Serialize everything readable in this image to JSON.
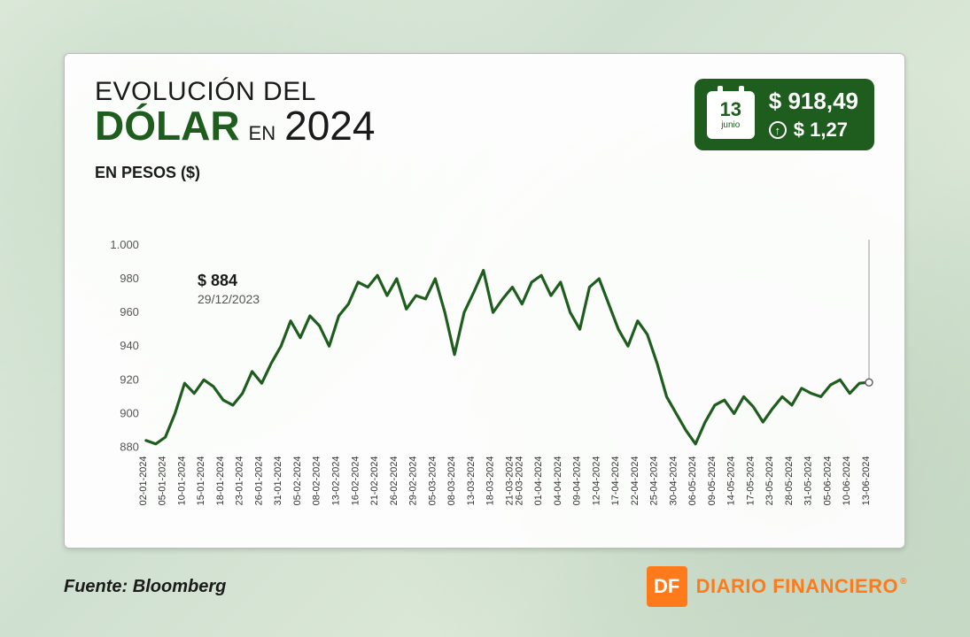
{
  "title": {
    "line1": "EVOLUCIÓN DEL",
    "dollar": "DÓLAR",
    "en": "EN",
    "year": "2024",
    "line1_fontsize": 30,
    "dollar_fontsize": 46,
    "en_fontsize": 22,
    "year_fontsize": 46,
    "dollar_color": "#1e5d1e",
    "text_color": "#1a1a1a"
  },
  "subtitle": {
    "text": "EN PESOS ($)",
    "fontsize": 18
  },
  "badge": {
    "bg": "#1e5d1e",
    "day": "13",
    "month": "junio",
    "price": "$ 918,49",
    "delta": "$ 1,27",
    "direction": "up",
    "price_fontsize": 26,
    "delta_fontsize": 22
  },
  "start_annotation": {
    "value": "$ 884",
    "date": "29/12/2023",
    "value_fontsize": 18,
    "date_fontsize": 14
  },
  "chart": {
    "type": "line",
    "ylabel_fontsize": 13,
    "xlabel_fontsize": 11,
    "ylim": [
      880,
      1000
    ],
    "ytick_step": 20,
    "yticks": [
      880,
      900,
      920,
      940,
      960,
      980,
      1000
    ],
    "line_color": "#1e5d1e",
    "line_width": 3.2,
    "background_color": "rgba(255,255,255,0.92)",
    "callout_color": "#a9a9a9",
    "dates": [
      "02-01-2024",
      "05-01-2024",
      "10-01-2024",
      "15-01-2024",
      "18-01-2024",
      "23-01-2024",
      "26-01-2024",
      "31-01-2024",
      "05-02-2024",
      "08-02-2024",
      "13-02-2024",
      "16-02-2024",
      "21-02-2024",
      "26-02-2024",
      "29-02-2024",
      "05-03-2024",
      "08-03-2024",
      "13-03-2024",
      "18-03-2024",
      "21-03-2024",
      "26-03-2024",
      "01-04-2024",
      "04-04-2024",
      "09-04-2024",
      "12-04-2024",
      "17-04-2024",
      "22-04-2024",
      "25-04-2024",
      "30-04-2024",
      "06-05-2024",
      "09-05-2024",
      "14-05-2024",
      "17-05-2024",
      "23-05-2024",
      "28-05-2024",
      "31-05-2024",
      "05-06-2024",
      "10-06-2024",
      "13-06-2024"
    ],
    "values": [
      884,
      882,
      886,
      900,
      918,
      912,
      920,
      916,
      908,
      905,
      912,
      925,
      918,
      930,
      940,
      955,
      945,
      958,
      952,
      940,
      958,
      965,
      978,
      975,
      982,
      970,
      980,
      962,
      970,
      968,
      980,
      960,
      935,
      960,
      972,
      985,
      960,
      968,
      975,
      965,
      978,
      982,
      970,
      978,
      960,
      950,
      975,
      980,
      965,
      950,
      940,
      955,
      947,
      930,
      910,
      900,
      890,
      882,
      895,
      905,
      908,
      900,
      910,
      904,
      895,
      903,
      910,
      905,
      915,
      912,
      910,
      917,
      920,
      912,
      918,
      918.49
    ],
    "n_points": 76
  },
  "source": {
    "label": "Fuente: Bloomberg"
  },
  "brand": {
    "square": "DF",
    "name": "DIARIO FINANCIERO",
    "color": "#ff7a1a"
  }
}
